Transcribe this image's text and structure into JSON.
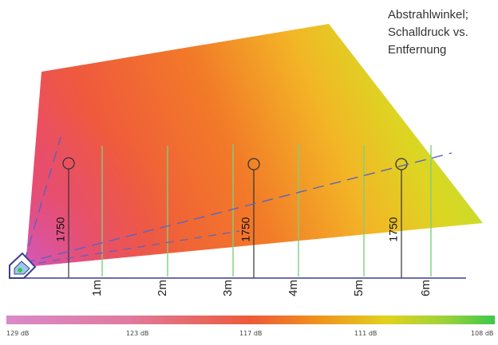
{
  "title_lines": [
    "Abstrahlwinkel;",
    "Schalldruck vs.",
    "Entfernung"
  ],
  "distance_markers": [
    "1m",
    "2m",
    "3m",
    "4m",
    "5m",
    "6m"
  ],
  "listener_positions": [
    {
      "label": "1750",
      "marker": "circle"
    },
    {
      "label": "1750",
      "marker": "circle"
    },
    {
      "label": "1750",
      "marker": "circle"
    }
  ],
  "color_scale": {
    "labels": [
      "129 dB",
      "123 dB",
      "117 dB",
      "111 dB",
      "108 dB"
    ],
    "colors": [
      "#d98ac8",
      "#e07a9e",
      "#ec5a3a",
      "#f08a1e",
      "#e2d21e",
      "#9ad23a",
      "#3cc84a"
    ]
  },
  "colors": {
    "axis_line": "#3a3f8c",
    "guide_line": "#5a64c0",
    "distance_line": "#7ecf7e",
    "listener_line": "#333333"
  },
  "icons": [
    "speaker-icon"
  ]
}
